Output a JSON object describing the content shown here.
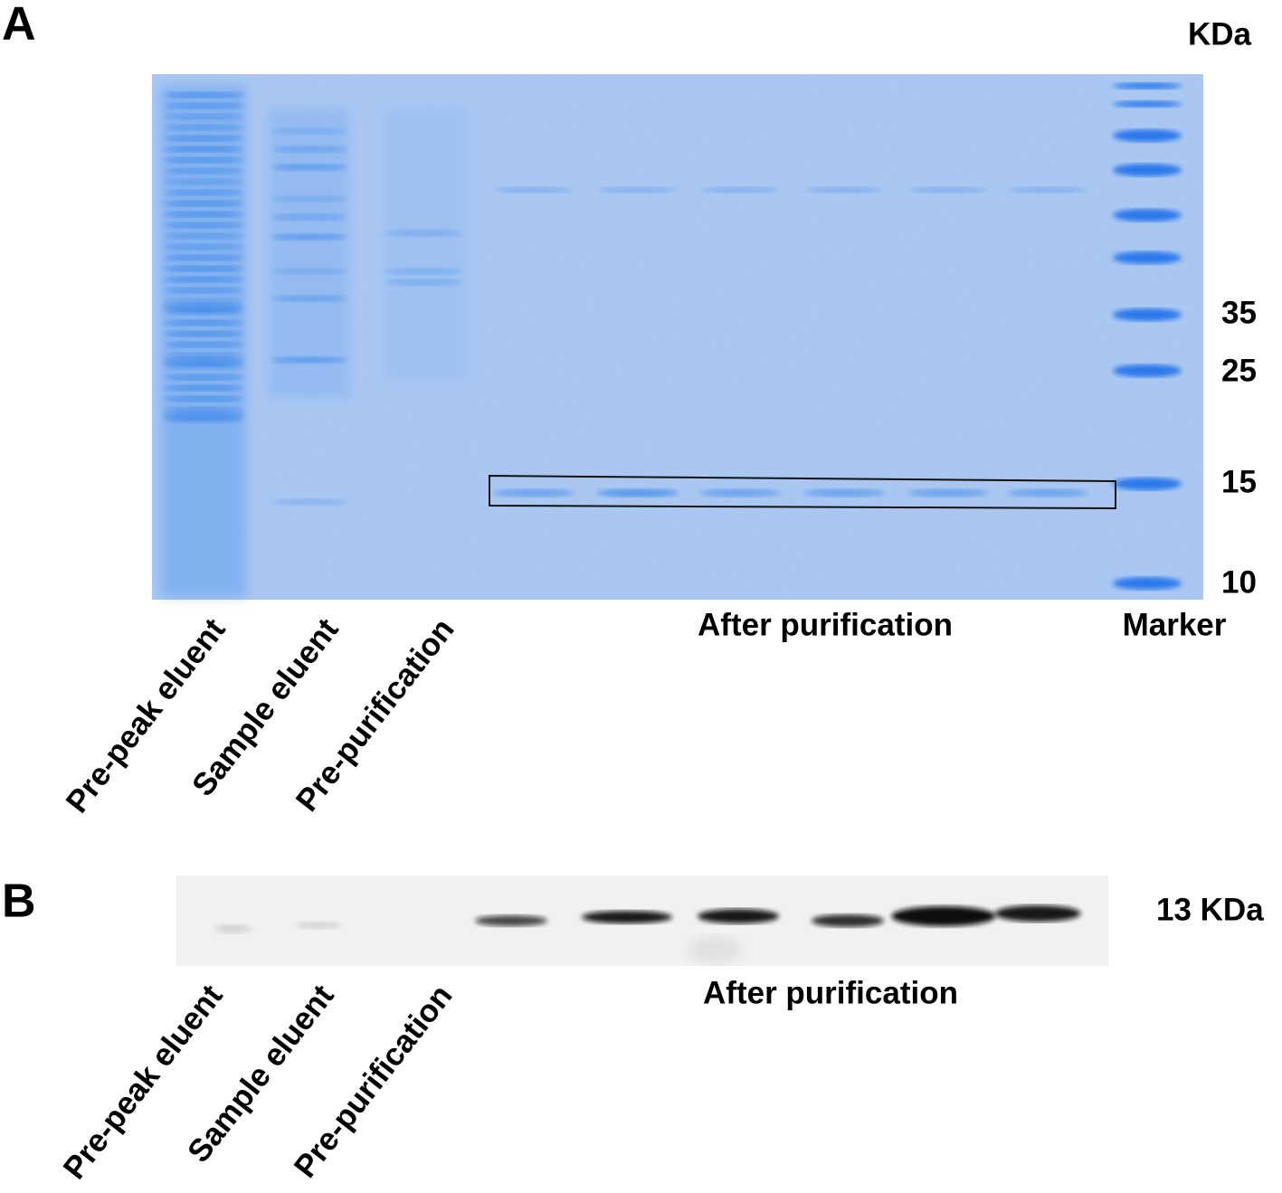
{
  "panel_a": {
    "label": "A",
    "unit": "KDa",
    "marker_sizes": [
      "35",
      "25",
      "15",
      "10"
    ],
    "lane_labels": [
      "Pre-peak eluent",
      "Sample eluent",
      "Pre-purification"
    ],
    "group_label": "After purification",
    "marker_label": "Marker"
  },
  "panel_b": {
    "label": "B",
    "band_size": "13 KDa",
    "lane_labels": [
      "Pre-peak eluent",
      "Sample eluent",
      "Pre-purification"
    ],
    "group_label": "After purification"
  }
}
